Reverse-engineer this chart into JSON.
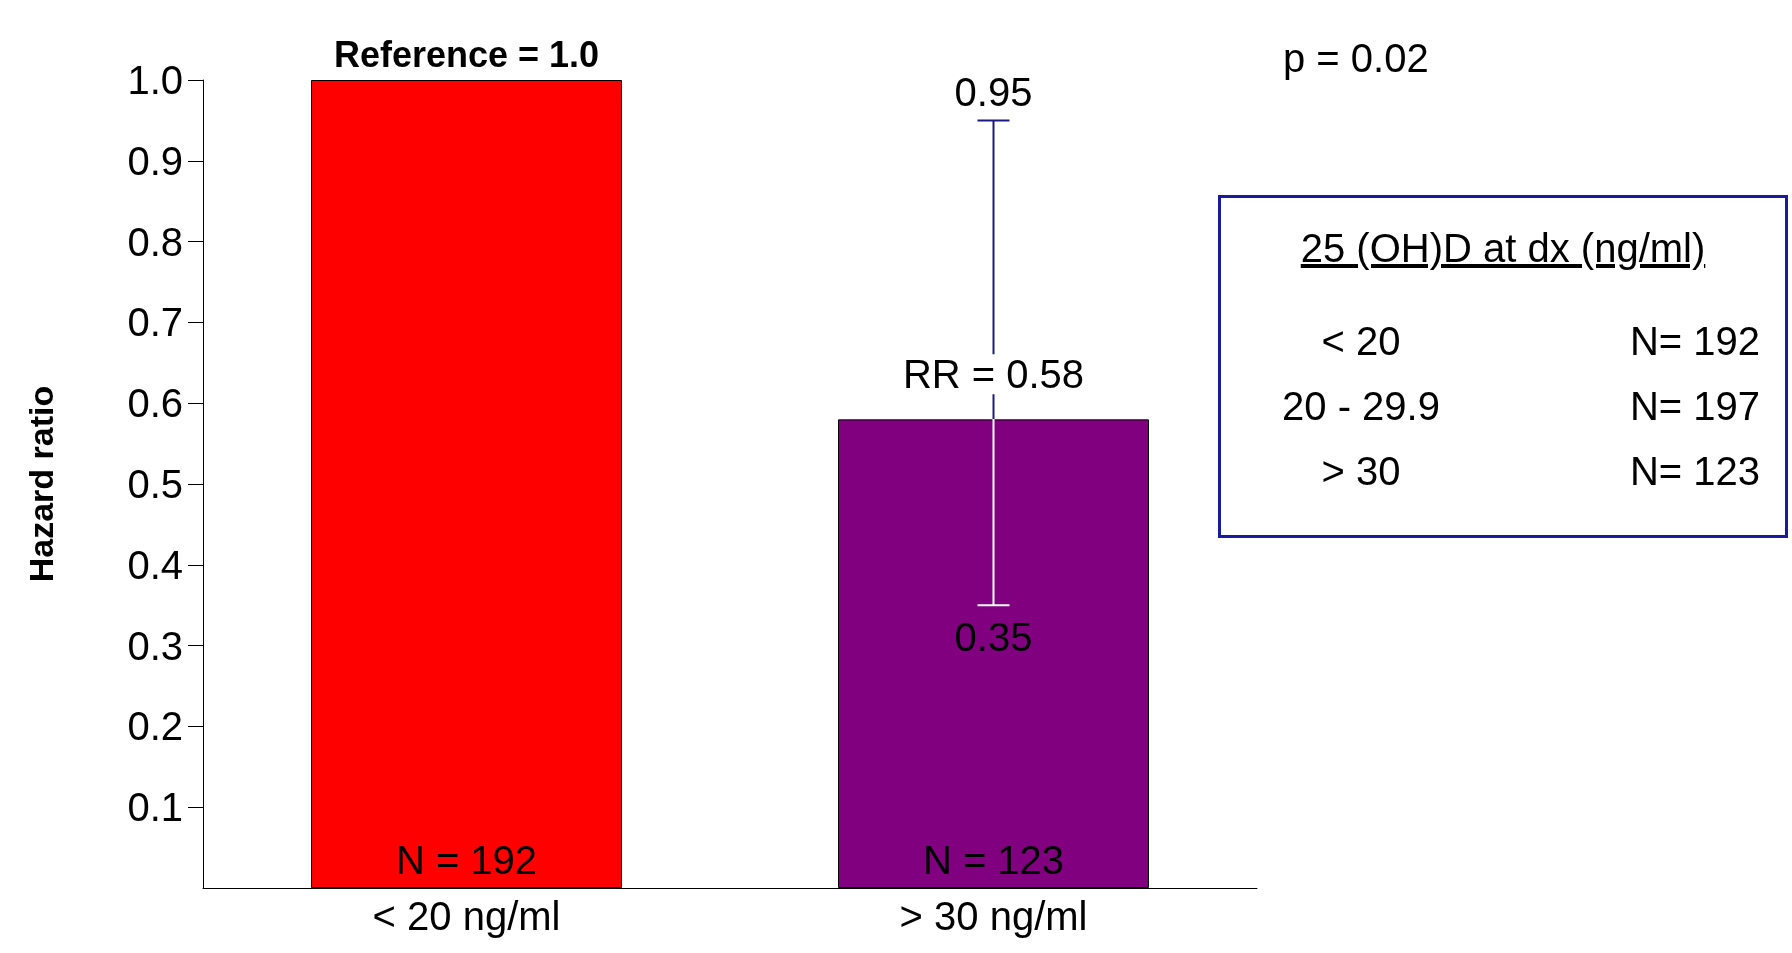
{
  "chart_data": {
    "type": "bar",
    "ylabel": "Hazard ratio",
    "categories": [
      "< 20 ng/ml",
      "> 30 ng/ml"
    ],
    "values": [
      1.0,
      0.58
    ],
    "colors": [
      "#ff0000",
      "#800080"
    ],
    "errors": [
      null,
      [
        0.35,
        0.95
      ]
    ],
    "ylim": [
      0,
      1.0
    ],
    "yticks": [
      0.1,
      0.2,
      0.3,
      0.4,
      0.5,
      0.6,
      0.7,
      0.8,
      0.9,
      {
        "value": 1.0,
        "label": "1.0"
      }
    ],
    "grid": false,
    "annotations": [
      {
        "text": "Reference = 1.0",
        "x": "< 20 ng/ml",
        "y": 1.0
      },
      {
        "text": "0.95",
        "x": "> 30 ng/ml",
        "y": 0.95
      },
      {
        "text": "RR = 0.58",
        "x": "> 30 ng/ml",
        "y": 0.58
      },
      {
        "text": "0.35",
        "x": "> 30 ng/ml",
        "y": 0.35
      },
      {
        "text": "N = 192",
        "x": "< 20 ng/ml",
        "y": 0
      },
      {
        "text": "N = 123",
        "x": "> 30 ng/ml",
        "y": 0
      },
      "p = 0.02",
      "25 (OH)D at dx (ng/ml)",
      "< 20",
      "N= 192",
      "20 - 29.9",
      "N= 197",
      "> 30",
      "N= 123"
    ]
  }
}
